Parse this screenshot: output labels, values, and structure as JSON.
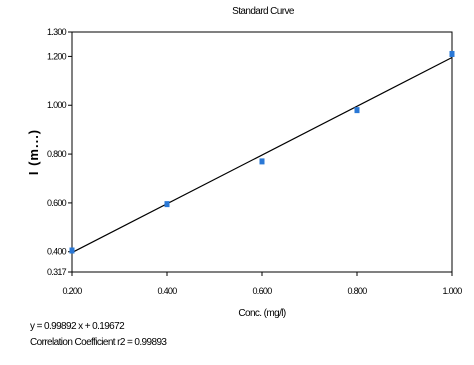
{
  "chart_data": {
    "type": "scatter",
    "title": "Standard Curve",
    "xlabel": "Conc. (mg/l)",
    "ylabel": "I (m...)",
    "xlim": [
      0.2,
      1.0
    ],
    "ylim": [
      0.317,
      1.3
    ],
    "x_ticks": [
      "0.200",
      "0.400",
      "0.600",
      "0.800",
      "1.000"
    ],
    "y_ticks": [
      "0.317",
      "0.400",
      "0.600",
      "0.800",
      "1.000",
      "1.200",
      "1.300"
    ],
    "x_tick_values": [
      0.2,
      0.4,
      0.6,
      0.8,
      1.0
    ],
    "y_tick_values": [
      0.317,
      0.4,
      0.6,
      0.8,
      1.0,
      1.2,
      1.3
    ],
    "points": {
      "x": [
        0.2,
        0.4,
        0.6,
        0.8,
        1.0
      ],
      "y": [
        0.405,
        0.595,
        0.77,
        0.98,
        1.21
      ]
    },
    "fit": {
      "slope": 0.99892,
      "intercept": 0.19672
    },
    "equation": "y = 0.99892 x + 0.19672",
    "correlation": "Correlation Coefficient r2 = 0.99893",
    "marker_color": "#2a78d6",
    "line_color": "#000000",
    "grid": false,
    "legend": "none"
  }
}
